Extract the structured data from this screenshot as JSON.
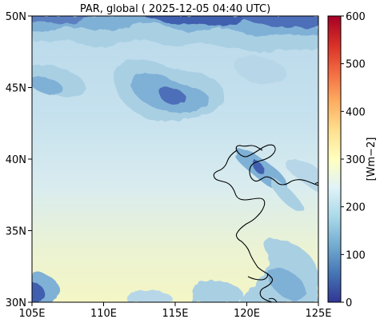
{
  "title": "PAR, global ( 2025-12-05 04:40 UTC)",
  "map": {
    "lon_range": [
      105,
      125
    ],
    "lat_range": [
      30,
      50
    ],
    "x_ticks": [
      {
        "value": 105,
        "label": "105E"
      },
      {
        "value": 110,
        "label": "110E"
      },
      {
        "value": 115,
        "label": "115E"
      },
      {
        "value": 120,
        "label": "120E"
      },
      {
        "value": 125,
        "label": "125E"
      }
    ],
    "y_ticks": [
      {
        "value": 50,
        "label": "50N"
      },
      {
        "value": 45,
        "label": "45N"
      },
      {
        "value": 40,
        "label": "40N"
      },
      {
        "value": 35,
        "label": "35N"
      },
      {
        "value": 30,
        "label": "30N"
      }
    ]
  },
  "colorbar": {
    "label": "[Wm−2]",
    "range": [
      0,
      600
    ],
    "colormap": "RdYlBu_r",
    "ticks": [
      {
        "value": 600,
        "label": "600"
      },
      {
        "value": 500,
        "label": "500"
      },
      {
        "value": 400,
        "label": "400"
      },
      {
        "value": 300,
        "label": "300"
      },
      {
        "value": 200,
        "label": "200"
      },
      {
        "value": 100,
        "label": "100"
      },
      {
        "value": 0,
        "label": "0"
      }
    ]
  },
  "colors": {
    "clear_sky": "#cfe6ee",
    "thin_cloud": "#a9cfe3",
    "cloud": "#7fb0d6",
    "thick_cloud": "#3f5fae",
    "south_haze": "#f3f6c6",
    "coastline": "#000000"
  }
}
